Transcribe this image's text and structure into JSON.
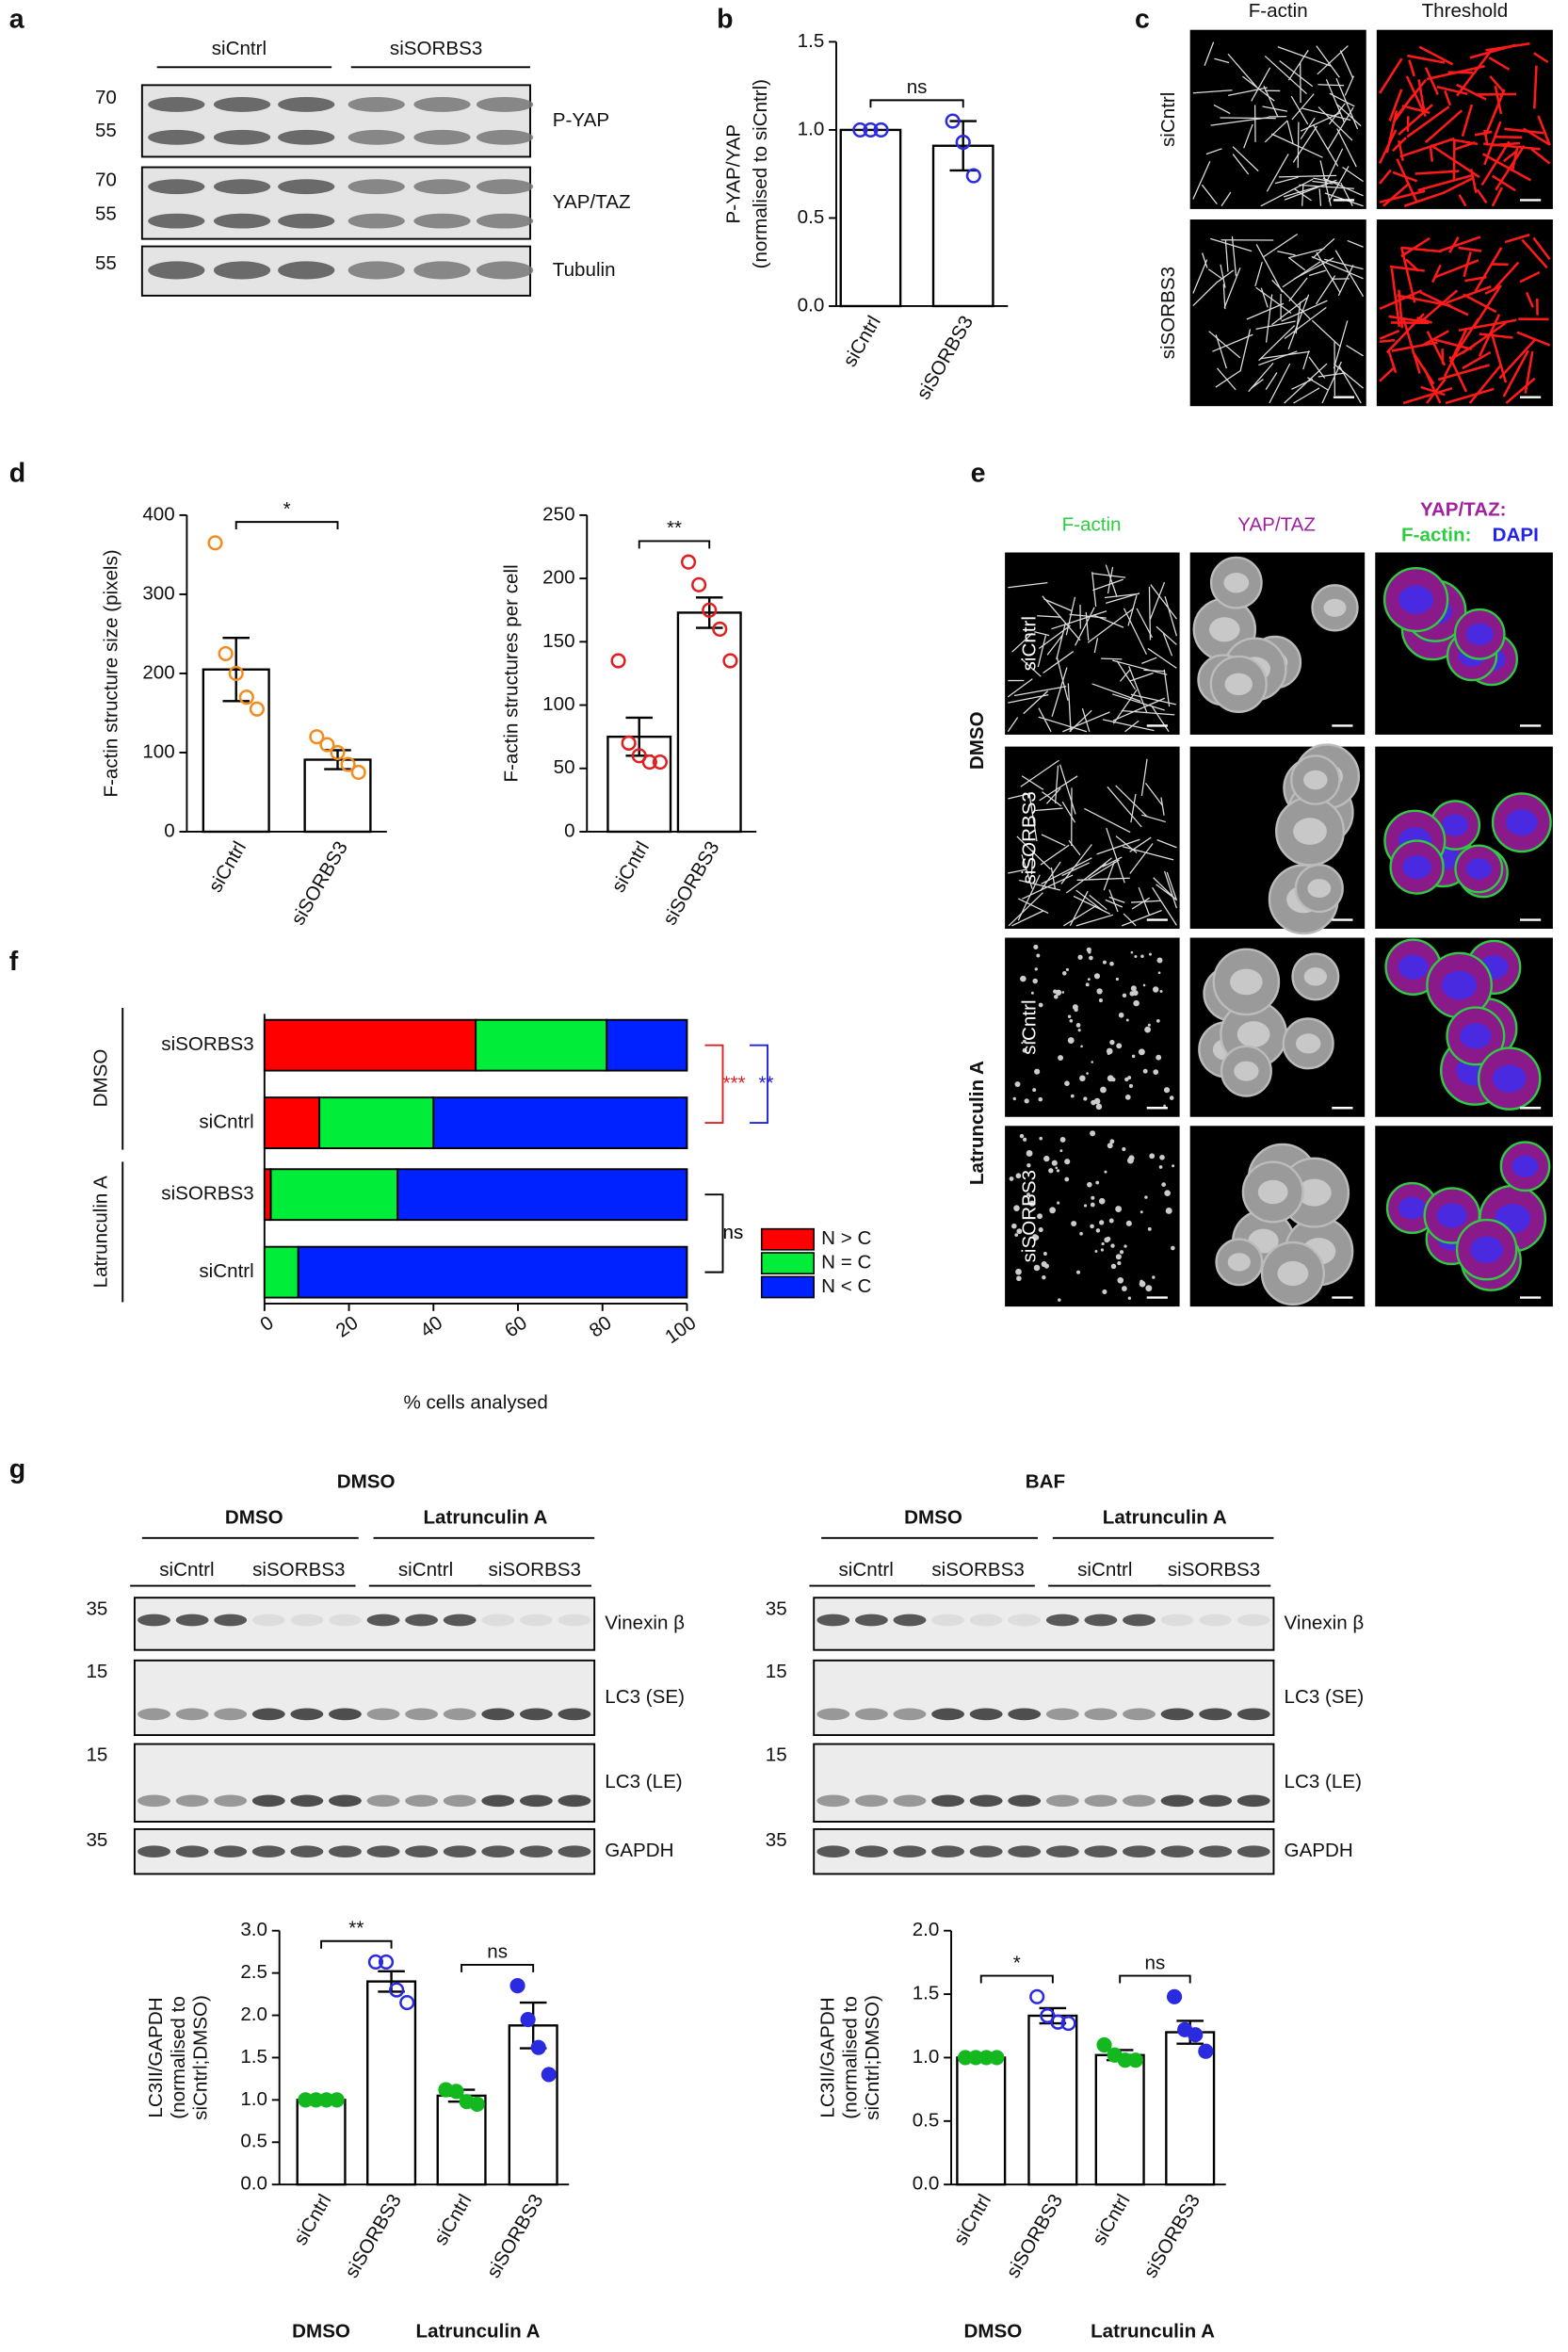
{
  "panel_labels": [
    "a",
    "b",
    "c",
    "d",
    "e",
    "f",
    "g"
  ],
  "blot_a": {
    "groups": [
      "siCntrl",
      "siSORBS3"
    ],
    "rows": [
      {
        "label": "P-YAP",
        "mw": [
          "70",
          "55"
        ]
      },
      {
        "label": "YAP/TAZ",
        "mw": [
          "70",
          "55"
        ]
      },
      {
        "label": "Tubulin",
        "mw": [
          "55"
        ]
      }
    ]
  },
  "panel_c": {
    "columns": [
      "F-actin",
      "Threshold"
    ],
    "rows": [
      "siCntrl",
      "siSORBS3"
    ]
  },
  "panel_e": {
    "columns": [
      "F-actin",
      "YAP/TAZ"
    ],
    "merge_title": [
      "YAP/TAZ:",
      "F-actin:",
      "DAPI"
    ],
    "groups": [
      "DMSO",
      "Latrunculin A"
    ],
    "rows": [
      "siCntrl",
      "siSORBS3",
      "siCntrl",
      "siSORBS3"
    ]
  },
  "blot_g": [
    {
      "title": "DMSO",
      "treatments": [
        "DMSO",
        "Latrunculin A"
      ],
      "lanes": [
        "siCntrl",
        "siSORBS3",
        "siCntrl",
        "siSORBS3"
      ],
      "rows": [
        {
          "label": "Vinexin β",
          "mw": "35"
        },
        {
          "label": "LC3 (SE)",
          "mw": "15"
        },
        {
          "label": "LC3 (LE)",
          "mw": "15"
        },
        {
          "label": "GAPDH",
          "mw": "35"
        }
      ]
    },
    {
      "title": "BAF",
      "treatments": [
        "DMSO",
        "Latrunculin A"
      ],
      "lanes": [
        "siCntrl",
        "siSORBS3",
        "siCntrl",
        "siSORBS3"
      ],
      "rows": [
        {
          "label": "Vinexin β",
          "mw": "35"
        },
        {
          "label": "LC3 (SE)",
          "mw": "15"
        },
        {
          "label": "LC3 (LE)",
          "mw": "15"
        },
        {
          "label": "GAPDH",
          "mw": "35"
        }
      ]
    }
  ],
  "chart_data": [
    {
      "type": "bar",
      "ylabel": [
        "P-YAP/YAP",
        "(normalised to siCntrl)"
      ],
      "categories": [
        "siCntrl",
        "siSORBS3"
      ],
      "values": [
        1.0,
        0.91
      ],
      "errors": [
        0,
        0.14
      ],
      "points": [
        [
          1.0,
          1.0,
          1.0
        ],
        [
          1.05,
          0.93,
          0.74
        ]
      ],
      "point_colors": [
        "#2a2adf",
        "#2a2adf"
      ],
      "point_filled": [
        false,
        false
      ],
      "ylim": [
        0,
        1.5
      ],
      "yticks": [
        {
          "value": 0,
          "label": "0.0"
        },
        {
          "value": 0.5,
          "label": "0.5"
        },
        {
          "value": 1,
          "label": "1.0"
        },
        {
          "value": 1.5,
          "label": "1.5"
        }
      ],
      "annotations": [
        "ns"
      ]
    },
    {
      "type": "bar",
      "ylabel": [
        "F-actin structure size (pixels)"
      ],
      "categories": [
        "siCntrl",
        "siSORBS3"
      ],
      "values": [
        205,
        91
      ],
      "errors": [
        40,
        12
      ],
      "points": [
        [
          365,
          225,
          200,
          170,
          155
        ],
        [
          120,
          110,
          100,
          85,
          75
        ]
      ],
      "point_colors": [
        "#f28c1e",
        "#f28c1e"
      ],
      "point_filled": [
        false,
        false
      ],
      "ylim": [
        0,
        400
      ],
      "yticks": [
        0,
        100,
        200,
        300,
        400
      ],
      "annotations": [
        "*"
      ]
    },
    {
      "type": "bar",
      "ylabel": [
        "F-actin structures per cell"
      ],
      "categories": [
        "siCntrl",
        "siSORBS3"
      ],
      "values": [
        75,
        173
      ],
      "errors": [
        15,
        12
      ],
      "points": [
        [
          135,
          70,
          60,
          55,
          55
        ],
        [
          213,
          195,
          175,
          160,
          135
        ]
      ],
      "point_colors": [
        "#e02020",
        "#e02020"
      ],
      "point_filled": [
        false,
        false
      ],
      "ylim": [
        0,
        250
      ],
      "yticks": [
        0,
        50,
        100,
        150,
        200,
        250
      ],
      "annotations": [
        "**"
      ]
    },
    {
      "type": "stacked_bar_h",
      "xlabel": "% cells analysed",
      "categories": [
        "siSORBS3",
        "siCntrl",
        "siSORBS3",
        "siCntrl"
      ],
      "groups": [
        "DMSO",
        "Latrunculin A"
      ],
      "series": [
        {
          "name": "N > C",
          "color": "#ff0000",
          "values": [
            50,
            13,
            1.5,
            0
          ]
        },
        {
          "name": "N = C",
          "color": "#00ee3a",
          "values": [
            31,
            27,
            30,
            8
          ]
        },
        {
          "name": "N < C",
          "color": "#0022ff",
          "values": [
            19,
            60,
            68.5,
            92
          ]
        }
      ],
      "xlim": [
        0,
        100
      ],
      "xticks": [
        0,
        20,
        40,
        60,
        80,
        100
      ],
      "legend": "right",
      "annotations": [
        "***",
        "**",
        "ns"
      ]
    },
    {
      "type": "bar",
      "ylabel": [
        "LC3II/GAPDH",
        "(normalised to",
        "siCntrl;DMSO)"
      ],
      "categories": [
        "siCntrl",
        "siSORBS3",
        "siCntrl",
        "siSORBS3"
      ],
      "xgroups": [
        "DMSO",
        "Latrunculin A"
      ],
      "values": [
        1.0,
        2.4,
        1.05,
        1.88
      ],
      "errors": [
        0,
        0.12,
        0.07,
        0.27
      ],
      "points": [
        [
          1,
          1,
          1,
          1
        ],
        [
          2.63,
          2.63,
          2.3,
          2.15
        ],
        [
          1.12,
          1.1,
          0.98,
          0.95
        ],
        [
          2.35,
          1.95,
          1.62,
          1.3
        ]
      ],
      "point_colors": [
        "#12b81e",
        "#2a2adf",
        "#12b81e",
        "#2a2adf"
      ],
      "point_filled": [
        true,
        false,
        true,
        true
      ],
      "ylim": [
        0,
        3
      ],
      "yticks": [
        {
          "value": 0,
          "label": "0.0"
        },
        {
          "value": 0.5,
          "label": "0.5"
        },
        {
          "value": 1,
          "label": "1.0"
        },
        {
          "value": 1.5,
          "label": "1.5"
        },
        {
          "value": 2,
          "label": "2.0"
        },
        {
          "value": 2.5,
          "label": "2.5"
        },
        {
          "value": 3,
          "label": "3.0"
        }
      ],
      "annotations": [
        "**",
        "ns"
      ]
    },
    {
      "type": "bar",
      "ylabel": [
        "LC3II/GAPDH",
        "(normalised to",
        "siCntrl;DMSO)"
      ],
      "categories": [
        "siCntrl",
        "siSORBS3",
        "siCntrl",
        "siSORBS3"
      ],
      "xgroups": [
        "DMSO",
        "Latrunculin A"
      ],
      "values": [
        1.0,
        1.33,
        1.02,
        1.2
      ],
      "errors": [
        0,
        0.06,
        0.04,
        0.09
      ],
      "points": [
        [
          1,
          1,
          1,
          1
        ],
        [
          1.48,
          1.33,
          1.28,
          1.27
        ],
        [
          1.1,
          1.02,
          0.98,
          0.98
        ],
        [
          1.48,
          1.22,
          1.18,
          1.05
        ]
      ],
      "point_colors": [
        "#12b81e",
        "#2a2adf",
        "#12b81e",
        "#2a2adf"
      ],
      "point_filled": [
        true,
        false,
        true,
        true
      ],
      "ylim": [
        0,
        2
      ],
      "yticks": [
        {
          "value": 0,
          "label": "0.0"
        },
        {
          "value": 0.5,
          "label": "0.5"
        },
        {
          "value": 1,
          "label": "1.0"
        },
        {
          "value": 1.5,
          "label": "1.5"
        },
        {
          "value": 2,
          "label": "2.0"
        }
      ],
      "annotations": [
        "*",
        "ns"
      ]
    }
  ]
}
